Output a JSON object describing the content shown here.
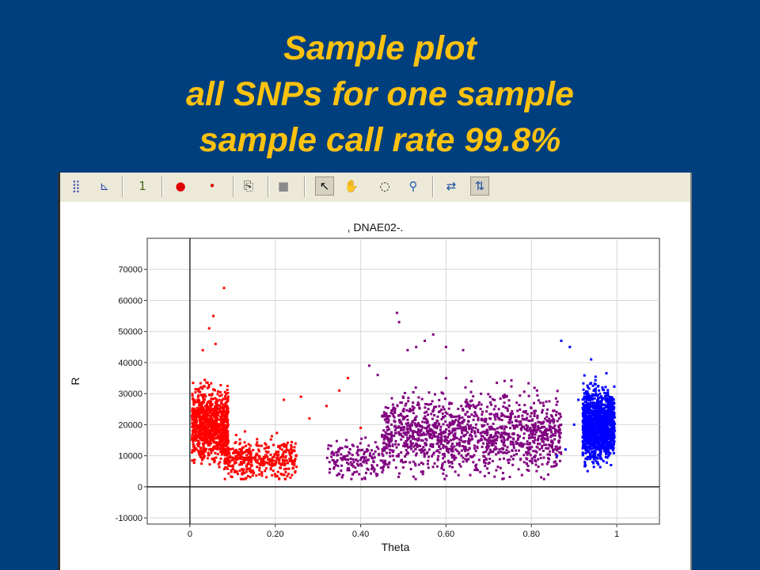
{
  "slide": {
    "title_lines": [
      "Sample plot",
      "all SNPs for one sample",
      "sample call rate 99.8%"
    ]
  },
  "toolbar": {
    "buttons": [
      {
        "name": "scatter-plot-icon",
        "glyph": "⣿",
        "color": "#3a4fb0"
      },
      {
        "name": "histogram-icon",
        "glyph": "⊾",
        "color": "#3a4fb0"
      },
      {
        "name": "one-icon",
        "glyph": "1",
        "color": "#4a6a1a"
      },
      {
        "name": "large-dot-icon",
        "glyph": "●",
        "color": "#e00000"
      },
      {
        "name": "small-dot-icon",
        "glyph": "•",
        "color": "#e00000"
      },
      {
        "name": "copy-icon",
        "glyph": "⎘",
        "color": "#333333"
      },
      {
        "name": "gray-square-icon",
        "glyph": "■",
        "color": "#8a8a8a"
      },
      {
        "name": "pointer-icon",
        "glyph": "↖",
        "color": "#111111"
      },
      {
        "name": "hand-icon",
        "glyph": "✋",
        "color": "#111111"
      },
      {
        "name": "lasso-icon",
        "glyph": "◌",
        "color": "#111111"
      },
      {
        "name": "magnifier-icon",
        "glyph": "⚲",
        "color": "#1a5fb4"
      },
      {
        "name": "horizontal-scale-icon",
        "glyph": "⇄",
        "color": "#1a4fa0"
      },
      {
        "name": "vertical-scale-icon",
        "glyph": "⇅",
        "color": "#1a4fa0"
      }
    ]
  },
  "chart_data": {
    "type": "scatter",
    "title": ", DNAE02-.",
    "xlabel": "Theta",
    "ylabel": "R",
    "xlim": [
      -0.1,
      1.1
    ],
    "ylim": [
      -12000,
      80000
    ],
    "xticks": [
      0,
      0.2,
      0.4,
      0.6,
      0.8,
      1
    ],
    "xtick_labels": [
      "0",
      "0.20",
      "0.40",
      "0.60",
      "0.80",
      "1"
    ],
    "yticks": [
      -10000,
      0,
      10000,
      20000,
      30000,
      40000,
      50000,
      60000,
      70000
    ],
    "ytick_labels": [
      "-10000",
      "0",
      "10000",
      "20000",
      "30000",
      "40000",
      "50000",
      "60000",
      "70000"
    ],
    "grid": true,
    "series": [
      {
        "color": "#ff0000",
        "clusters": [
          {
            "x_range": [
              0.005,
              0.09
            ],
            "y_mid": 20000,
            "y_spread": 9000,
            "weight": 0.7
          },
          {
            "x_range": [
              0.08,
              0.25
            ],
            "y_mid": 9000,
            "y_spread": 5000,
            "weight": 0.3
          }
        ],
        "outliers": [
          [
            0.08,
            64000
          ],
          [
            0.055,
            55000
          ],
          [
            0.045,
            51000
          ],
          [
            0.06,
            46000
          ],
          [
            0.03,
            44000
          ],
          [
            0.32,
            26000
          ],
          [
            0.35,
            31000
          ],
          [
            0.28,
            22000
          ],
          [
            0.22,
            28000
          ],
          [
            0.37,
            35000
          ],
          [
            0.4,
            19000
          ],
          [
            0.26,
            29000
          ]
        ]
      },
      {
        "color": "#800080",
        "clusters": [
          {
            "x_range": [
              0.45,
              0.87
            ],
            "y_mid": 17000,
            "y_spread": 10000,
            "weight": 1.0
          },
          {
            "x_range": [
              0.32,
              0.46
            ],
            "y_mid": 9000,
            "y_spread": 5000,
            "weight": 0.12
          }
        ],
        "outliers": [
          [
            0.485,
            56000
          ],
          [
            0.49,
            53000
          ],
          [
            0.57,
            49000
          ],
          [
            0.55,
            47000
          ],
          [
            0.6,
            45000
          ],
          [
            0.53,
            45000
          ],
          [
            0.42,
            39000
          ],
          [
            0.44,
            36000
          ],
          [
            0.64,
            44000
          ],
          [
            0.51,
            44000
          ]
        ]
      },
      {
        "color": "#0000ff",
        "clusters": [
          {
            "x_range": [
              0.92,
              0.995
            ],
            "y_mid": 20000,
            "y_spread": 9000,
            "weight": 1.0
          }
        ],
        "outliers": [
          [
            0.87,
            47000
          ],
          [
            0.89,
            45000
          ],
          [
            0.9,
            20000
          ],
          [
            0.88,
            12000
          ],
          [
            0.86,
            10000
          ],
          [
            0.91,
            28000
          ],
          [
            0.94,
            41000
          ]
        ]
      }
    ]
  }
}
